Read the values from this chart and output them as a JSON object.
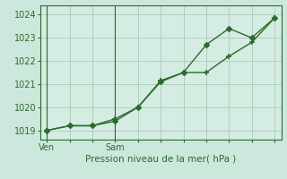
{
  "line1_x": [
    0,
    0.5,
    1,
    1.5,
    2,
    2.5,
    3,
    3.5,
    4,
    4.5,
    5
  ],
  "line1_y": [
    1019.0,
    1019.2,
    1019.2,
    1019.4,
    1020.0,
    1021.1,
    1021.5,
    1022.7,
    1023.4,
    1023.0,
    1023.85
  ],
  "line2_x": [
    0,
    0.5,
    1,
    1.5,
    2,
    2.5,
    3,
    3.5,
    4,
    4.5,
    5
  ],
  "line2_y": [
    1019.0,
    1019.2,
    1019.2,
    1019.5,
    1020.0,
    1021.15,
    1021.5,
    1021.5,
    1022.2,
    1022.8,
    1023.85
  ],
  "line_color": "#2d6a2d",
  "bg_color": "#cce8dc",
  "plot_bg": "#d4ece2",
  "xtick_positions": [
    0,
    1.5
  ],
  "xtick_labels": [
    "Ven",
    "Sam"
  ],
  "ytick_positions": [
    1019,
    1020,
    1021,
    1022,
    1023,
    1024
  ],
  "ylim": [
    1018.6,
    1024.4
  ],
  "xlim": [
    -0.15,
    5.15
  ],
  "xlabel": "Pression niveau de la mer( hPa )",
  "grid_color": "#b0cfbf",
  "vline_positions": [
    0,
    1.5
  ],
  "num_xgrid": 11,
  "num_ygrid": 6
}
